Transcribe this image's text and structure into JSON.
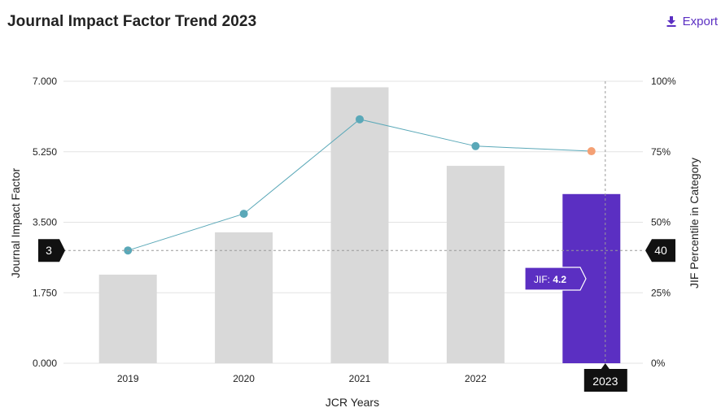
{
  "header": {
    "title": "Journal Impact Factor Trend 2023",
    "export_label": "Export",
    "export_icon": "download-icon"
  },
  "chart_data": {
    "type": "bar",
    "categories": [
      "2019",
      "2020",
      "2021",
      "2022",
      "2023"
    ],
    "series": [
      {
        "kind": "bar",
        "values": [
          2.2,
          3.25,
          6.85,
          4.9,
          4.2
        ]
      },
      {
        "kind": "line",
        "axis": "right",
        "values": [
          40,
          53,
          86.5,
          77,
          75.2
        ]
      }
    ],
    "highlight": {
      "category": "2023",
      "bar_color": "#5b2fc2",
      "point_color": "#f4a074"
    },
    "bar_color": "#d9d9d9",
    "line_color": "#5aa8b8",
    "xlabel": "JCR Years",
    "ylabel": "Journal Impact Factor",
    "y2label": "JIF Percentile in Category",
    "ylim": [
      0,
      7
    ],
    "y2lim": [
      0,
      100
    ],
    "yticks": [
      "0.000",
      "1.750",
      "3.500",
      "5.250",
      "7.000"
    ],
    "y2ticks": [
      "0%",
      "25%",
      "50%",
      "75%",
      "100%"
    ],
    "grid": true,
    "crosshair": {
      "y_value": 2.8,
      "left_badge": "3",
      "right_badge": "40",
      "x_badge": "2023"
    },
    "tooltip": {
      "label": "JIF: ",
      "value": "4.2"
    }
  }
}
